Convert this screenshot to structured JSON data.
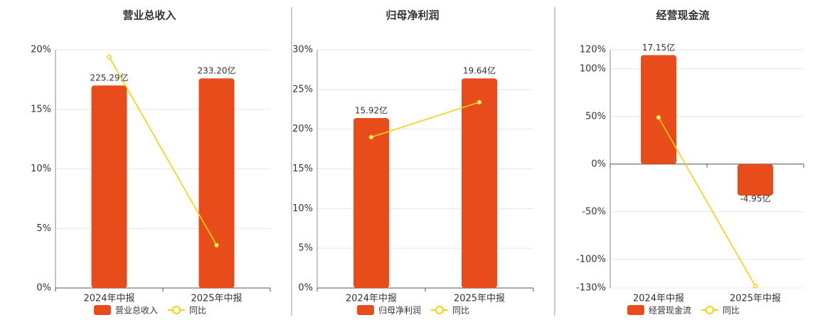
{
  "chart_data": [
    {
      "type": "combo",
      "title": "营业总收入",
      "categories": [
        "2024年中报",
        "2025年中报"
      ],
      "series": [
        {
          "name": "营业总收入",
          "type": "bar",
          "color": "#e84c1a",
          "values": [
            225.29,
            233.2
          ],
          "value_labels": [
            "225.29亿",
            "233.20亿"
          ]
        },
        {
          "name": "同比",
          "type": "line",
          "color": "#f5d20a",
          "values": [
            19.4,
            3.6
          ]
        }
      ],
      "ylim": [
        0,
        20
      ],
      "yticks": [
        {
          "value": 0,
          "label": "0%"
        },
        {
          "value": 5,
          "label": "5%"
        },
        {
          "value": 10,
          "label": "10%"
        },
        {
          "value": 15,
          "label": "15%"
        },
        {
          "value": 20,
          "label": "20%"
        }
      ],
      "grid": true
    },
    {
      "type": "combo",
      "title": "归母净利润",
      "categories": [
        "2024年中报",
        "2025年中报"
      ],
      "series": [
        {
          "name": "归母净利润",
          "type": "bar",
          "color": "#e84c1a",
          "values": [
            15.92,
            19.64
          ],
          "value_labels": [
            "15.92亿",
            "19.64亿"
          ]
        },
        {
          "name": "同比",
          "type": "line",
          "color": "#f5d20a",
          "values": [
            19.0,
            23.4
          ]
        }
      ],
      "ylim": [
        0,
        30
      ],
      "yticks": [
        {
          "value": 0,
          "label": "0%"
        },
        {
          "value": 5,
          "label": "5%"
        },
        {
          "value": 10,
          "label": "10%"
        },
        {
          "value": 15,
          "label": "15%"
        },
        {
          "value": 20,
          "label": "20%"
        },
        {
          "value": 25,
          "label": "25%"
        },
        {
          "value": 30,
          "label": "30%"
        }
      ],
      "grid": true
    },
    {
      "type": "combo",
      "title": "经营现金流",
      "categories": [
        "2024年中报",
        "2025年中报"
      ],
      "series": [
        {
          "name": "经营现金流",
          "type": "bar",
          "color": "#e84c1a",
          "values": [
            17.15,
            -4.95
          ],
          "value_labels": [
            "17.15亿",
            "-4.95亿"
          ]
        },
        {
          "name": "同比",
          "type": "line",
          "color": "#f5d20a",
          "values": [
            49,
            -128
          ]
        }
      ],
      "ylim": [
        -130,
        120
      ],
      "yticks": [
        {
          "value": -130,
          "label": "-130%"
        },
        {
          "value": -100,
          "label": "-100%"
        },
        {
          "value": -50,
          "label": "-50%"
        },
        {
          "value": 0,
          "label": "0%"
        },
        {
          "value": 50,
          "label": "50%"
        },
        {
          "value": 100,
          "label": "100%"
        },
        {
          "value": 120,
          "label": "120%"
        }
      ],
      "grid": true
    }
  ]
}
